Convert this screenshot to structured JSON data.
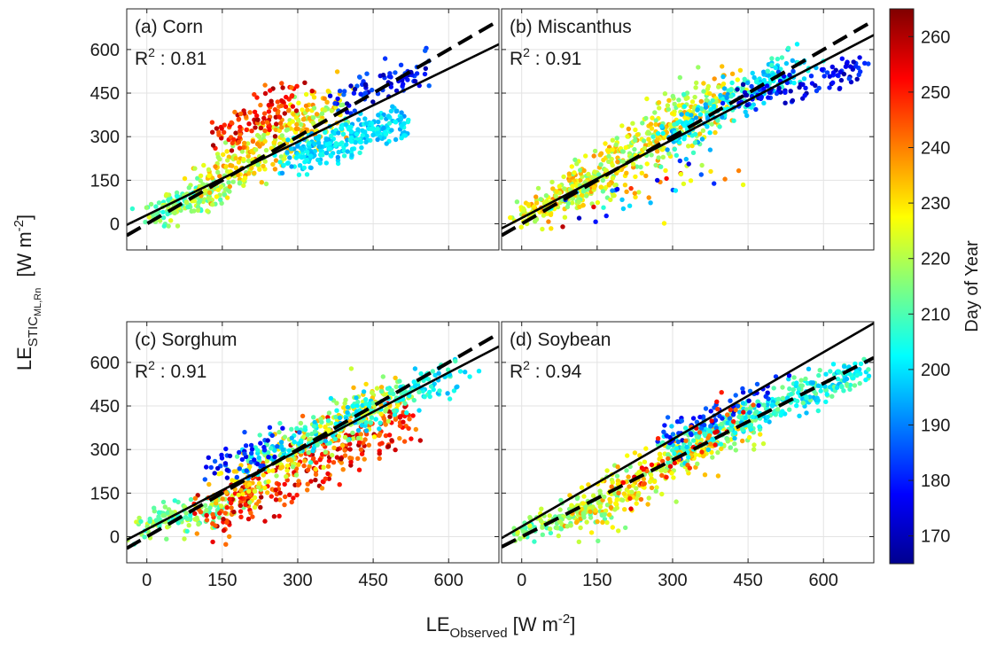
{
  "figure": {
    "ylabel": {
      "main": "LE",
      "sub": "STIC",
      "subsub": "ML,Rn",
      "unit": "[W m",
      "exp": "-2",
      "close": "]"
    },
    "xlabel": {
      "main": "LE",
      "sub": "Observed",
      "unit": "[W m",
      "exp": "-2",
      "close": "]"
    },
    "colorbar": {
      "label": "Day of Year",
      "ticks": [
        170,
        180,
        190,
        200,
        210,
        220,
        230,
        240,
        250,
        260
      ],
      "range": [
        165,
        265
      ]
    }
  },
  "chart_data": [
    {
      "type": "scatter",
      "id": "corn",
      "title": "(a) Corn",
      "r2_label": "R",
      "r2_sup": "2",
      "r2_text": " : 0.81",
      "xlim": [
        -40,
        700
      ],
      "ylim": [
        -90,
        740
      ],
      "xticks": [],
      "yticks": [
        0,
        150,
        300,
        450,
        600
      ],
      "fit_line": {
        "slope": 0.84,
        "intercept": 30
      },
      "identity_line": {
        "slope": 1,
        "intercept": 0
      },
      "clusters": [
        {
          "from": [
            10,
            30
          ],
          "to": [
            140,
            120
          ],
          "spread": 25,
          "doy": [
            205,
            225
          ],
          "n": 160
        },
        {
          "from": [
            120,
            120
          ],
          "to": [
            380,
            420
          ],
          "spread": 45,
          "doy": [
            215,
            240
          ],
          "n": 320
        },
        {
          "from": [
            150,
            300
          ],
          "to": [
            300,
            440
          ],
          "spread": 35,
          "doy": [
            240,
            262
          ],
          "n": 110
        },
        {
          "from": [
            280,
            220
          ],
          "to": [
            510,
            360
          ],
          "spread": 30,
          "doy": [
            192,
            206
          ],
          "n": 260
        },
        {
          "from": [
            380,
            420
          ],
          "to": [
            560,
            540
          ],
          "spread": 25,
          "doy": [
            168,
            188
          ],
          "n": 80
        }
      ]
    },
    {
      "type": "scatter",
      "id": "miscanthus",
      "title": "(b) Miscanthus",
      "r2_label": "R",
      "r2_sup": "2",
      "r2_text": " : 0.91",
      "xlim": [
        -40,
        700
      ],
      "ylim": [
        -90,
        740
      ],
      "xticks": [],
      "yticks": [],
      "fit_line": {
        "slope": 0.9,
        "intercept": 20
      },
      "identity_line": {
        "slope": 1,
        "intercept": 0
      },
      "clusters": [
        {
          "from": [
            0,
            20
          ],
          "to": [
            150,
            150
          ],
          "spread": 25,
          "doy": [
            215,
            240
          ],
          "n": 160
        },
        {
          "from": [
            100,
            100
          ],
          "to": [
            400,
            460
          ],
          "spread": 45,
          "doy": [
            212,
            238
          ],
          "n": 380
        },
        {
          "from": [
            280,
            280
          ],
          "to": [
            560,
            560
          ],
          "spread": 30,
          "doy": [
            192,
            210
          ],
          "n": 220
        },
        {
          "from": [
            420,
            420
          ],
          "to": [
            680,
            540
          ],
          "spread": 25,
          "doy": [
            168,
            185
          ],
          "n": 100
        },
        {
          "from": [
            80,
            20
          ],
          "to": [
            420,
            200
          ],
          "spread": 40,
          "doy": [
            170,
            260
          ],
          "n": 45
        }
      ]
    },
    {
      "type": "scatter",
      "id": "sorghum",
      "title": "(c) Sorghum",
      "r2_label": "R",
      "r2_sup": "2",
      "r2_text": " : 0.91",
      "xlim": [
        -40,
        700
      ],
      "ylim": [
        -90,
        740
      ],
      "xticks": [
        0,
        150,
        300,
        450,
        600
      ],
      "yticks": [
        0,
        150,
        300,
        450,
        600
      ],
      "fit_line": {
        "slope": 0.9,
        "intercept": 25
      },
      "identity_line": {
        "slope": 1,
        "intercept": 0
      },
      "clusters": [
        {
          "from": [
            -30,
            30
          ],
          "to": [
            180,
            120
          ],
          "spread": 25,
          "doy": [
            205,
            225
          ],
          "n": 140
        },
        {
          "from": [
            120,
            60
          ],
          "to": [
            520,
            420
          ],
          "spread": 45,
          "doy": [
            238,
            262
          ],
          "n": 300
        },
        {
          "from": [
            150,
            150
          ],
          "to": [
            500,
            500
          ],
          "spread": 40,
          "doy": [
            215,
            236
          ],
          "n": 240
        },
        {
          "from": [
            200,
            250
          ],
          "to": [
            620,
            570
          ],
          "spread": 30,
          "doy": [
            195,
            212
          ],
          "n": 230
        },
        {
          "from": [
            130,
            220
          ],
          "to": [
            260,
            340
          ],
          "spread": 35,
          "doy": [
            172,
            188
          ],
          "n": 50
        }
      ]
    },
    {
      "type": "scatter",
      "id": "soybean",
      "title": "(d) Soybean",
      "r2_label": "R",
      "r2_sup": "2",
      "r2_text": " : 0.94",
      "xlim": [
        -40,
        700
      ],
      "ylim": [
        -90,
        740
      ],
      "xticks": [
        0,
        150,
        300,
        450,
        600
      ],
      "yticks": [],
      "fit_line": {
        "slope": 1.0,
        "intercept": 35
      },
      "identity_line": {
        "slope": 0.88,
        "intercept": 0
      },
      "clusters": [
        {
          "from": [
            -10,
            10
          ],
          "to": [
            150,
            100
          ],
          "spread": 20,
          "doy": [
            205,
            225
          ],
          "n": 110
        },
        {
          "from": [
            100,
            60
          ],
          "to": [
            450,
            400
          ],
          "spread": 40,
          "doy": [
            212,
            238
          ],
          "n": 320
        },
        {
          "from": [
            300,
            300
          ],
          "to": [
            690,
            580
          ],
          "spread": 30,
          "doy": [
            195,
            215
          ],
          "n": 320
        },
        {
          "from": [
            280,
            330
          ],
          "to": [
            500,
            520
          ],
          "spread": 25,
          "doy": [
            172,
            190
          ],
          "n": 70
        },
        {
          "from": [
            200,
            150
          ],
          "to": [
            450,
            450
          ],
          "spread": 35,
          "doy": [
            238,
            256
          ],
          "n": 50
        }
      ]
    }
  ]
}
